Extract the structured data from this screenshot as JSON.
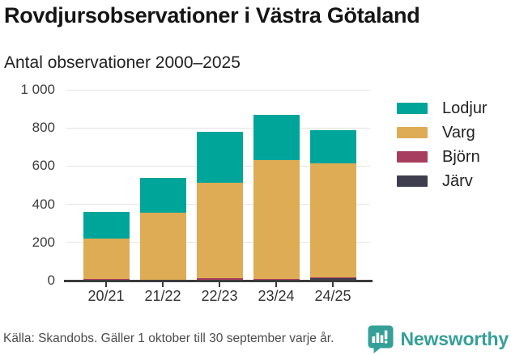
{
  "header": {
    "title": "Rovdjursobservationer i Västra Götaland",
    "subtitle": "Antal observationer 2000–2025"
  },
  "chart_data": {
    "type": "bar",
    "stacked": true,
    "title": "Rovdjursobservationer i Västra Götaland",
    "subtitle": "Antal observationer 2000–2025",
    "categories": [
      "20/21",
      "21/22",
      "22/23",
      "23/24",
      "24/25"
    ],
    "series": [
      {
        "name": "Lodjur",
        "color": "#00a59a",
        "values": [
          140,
          185,
          268,
          240,
          175
        ]
      },
      {
        "name": "Varg",
        "color": "#ddac55",
        "values": [
          212,
          350,
          501,
          621,
          600
        ]
      },
      {
        "name": "Björn",
        "color": "#a83e5f",
        "values": [
          5,
          3,
          7,
          6,
          3
        ]
      },
      {
        "name": "Järv",
        "color": "#3e3e4f",
        "values": [
          3,
          2,
          4,
          3,
          12
        ]
      }
    ],
    "stack_order_bottom_to_top": [
      "Järv",
      "Björn",
      "Varg",
      "Lodjur"
    ],
    "totals": [
      360,
      540,
      780,
      870,
      790
    ],
    "xlabel": "",
    "ylabel": "",
    "ylim": [
      0,
      1000
    ],
    "yticks": [
      0,
      200,
      400,
      600,
      800,
      1000
    ],
    "ytick_labels": [
      "0",
      "200",
      "400",
      "600",
      "800",
      "1 000"
    ],
    "grid": "horizontal",
    "legend_position": "right"
  },
  "footer": {
    "source": "Källa: Skandobs. Gäller 1 oktober till 30 september varje år.",
    "brand": "Newsworthy",
    "brand_color": "#35a098",
    "logo_icon": "bar-chart-speech-bubble"
  }
}
